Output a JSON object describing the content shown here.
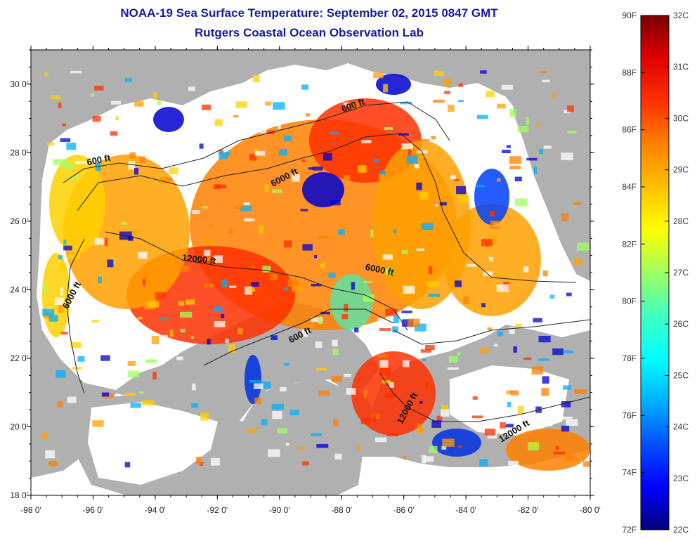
{
  "title": {
    "line1": "NOAA-19 Sea Surface Temperature:  September 02, 2015 0847 GMT",
    "line2": "Rutgers Coastal Ocean Observation Lab"
  },
  "map": {
    "lon_range": [
      -98,
      -80
    ],
    "lat_range": [
      18,
      31
    ],
    "lon_ticks": [
      -98,
      -96,
      -94,
      -92,
      -90,
      -88,
      -86,
      -84,
      -82,
      -80
    ],
    "lon_tick_labels": [
      "-98 0'",
      "-96 0'",
      "-94 0'",
      "-92 0'",
      "-90 0'",
      "-88 0'",
      "-86 0'",
      "-84 0'",
      "-82 0'",
      "-80 0'"
    ],
    "lat_ticks": [
      18,
      20,
      22,
      24,
      26,
      28,
      30
    ],
    "lat_tick_labels": [
      "18 0'",
      "20 0'",
      "22 0'",
      "24 0'",
      "26 0'",
      "28 0'",
      "30 0'"
    ],
    "land_color": "#b0b0b0",
    "cloud_color": "#ffffff",
    "contour_labels": [
      {
        "text": "600 ft",
        "lon": -95.8,
        "lat": 27.7,
        "angle": -12
      },
      {
        "text": "600 ft",
        "lon": -87.6,
        "lat": 29.3,
        "angle": -20
      },
      {
        "text": "6000 ft",
        "lon": -89.8,
        "lat": 27.2,
        "angle": -28
      },
      {
        "text": "12000 ft",
        "lon": -92.6,
        "lat": 24.8,
        "angle": 6
      },
      {
        "text": "6000 ft",
        "lon": -86.8,
        "lat": 24.5,
        "angle": 12
      },
      {
        "text": "6000 ft",
        "lon": -96.6,
        "lat": 23.8,
        "angle": -62
      },
      {
        "text": "600 ft",
        "lon": -89.3,
        "lat": 22.6,
        "angle": -28
      },
      {
        "text": "12000 ft",
        "lon": -85.8,
        "lat": 20.5,
        "angle": -62
      },
      {
        "text": "12000 ft",
        "lon": -82.4,
        "lat": 19.8,
        "angle": -32
      }
    ]
  },
  "colorbar": {
    "stops": [
      "#00007a",
      "#0000ff",
      "#0050ff",
      "#00b0ff",
      "#00ffff",
      "#40ffc0",
      "#a0ff60",
      "#ffff00",
      "#ffc000",
      "#ff8000",
      "#ff3000",
      "#e00000",
      "#7a0000"
    ],
    "f_labels": [
      "90F",
      "88F",
      "86F",
      "84F",
      "82F",
      "80F",
      "78F",
      "76F",
      "74F",
      "72F"
    ],
    "f_values": [
      90,
      88,
      86,
      84,
      82,
      80,
      78,
      76,
      74,
      72
    ],
    "c_labels": [
      "32C",
      "31C",
      "30C",
      "29C",
      "28C",
      "27C",
      "26C",
      "25C",
      "24C",
      "23C",
      "22C"
    ],
    "c_values": [
      32,
      31,
      30,
      29,
      28,
      27,
      26,
      25,
      24,
      23,
      22
    ]
  }
}
